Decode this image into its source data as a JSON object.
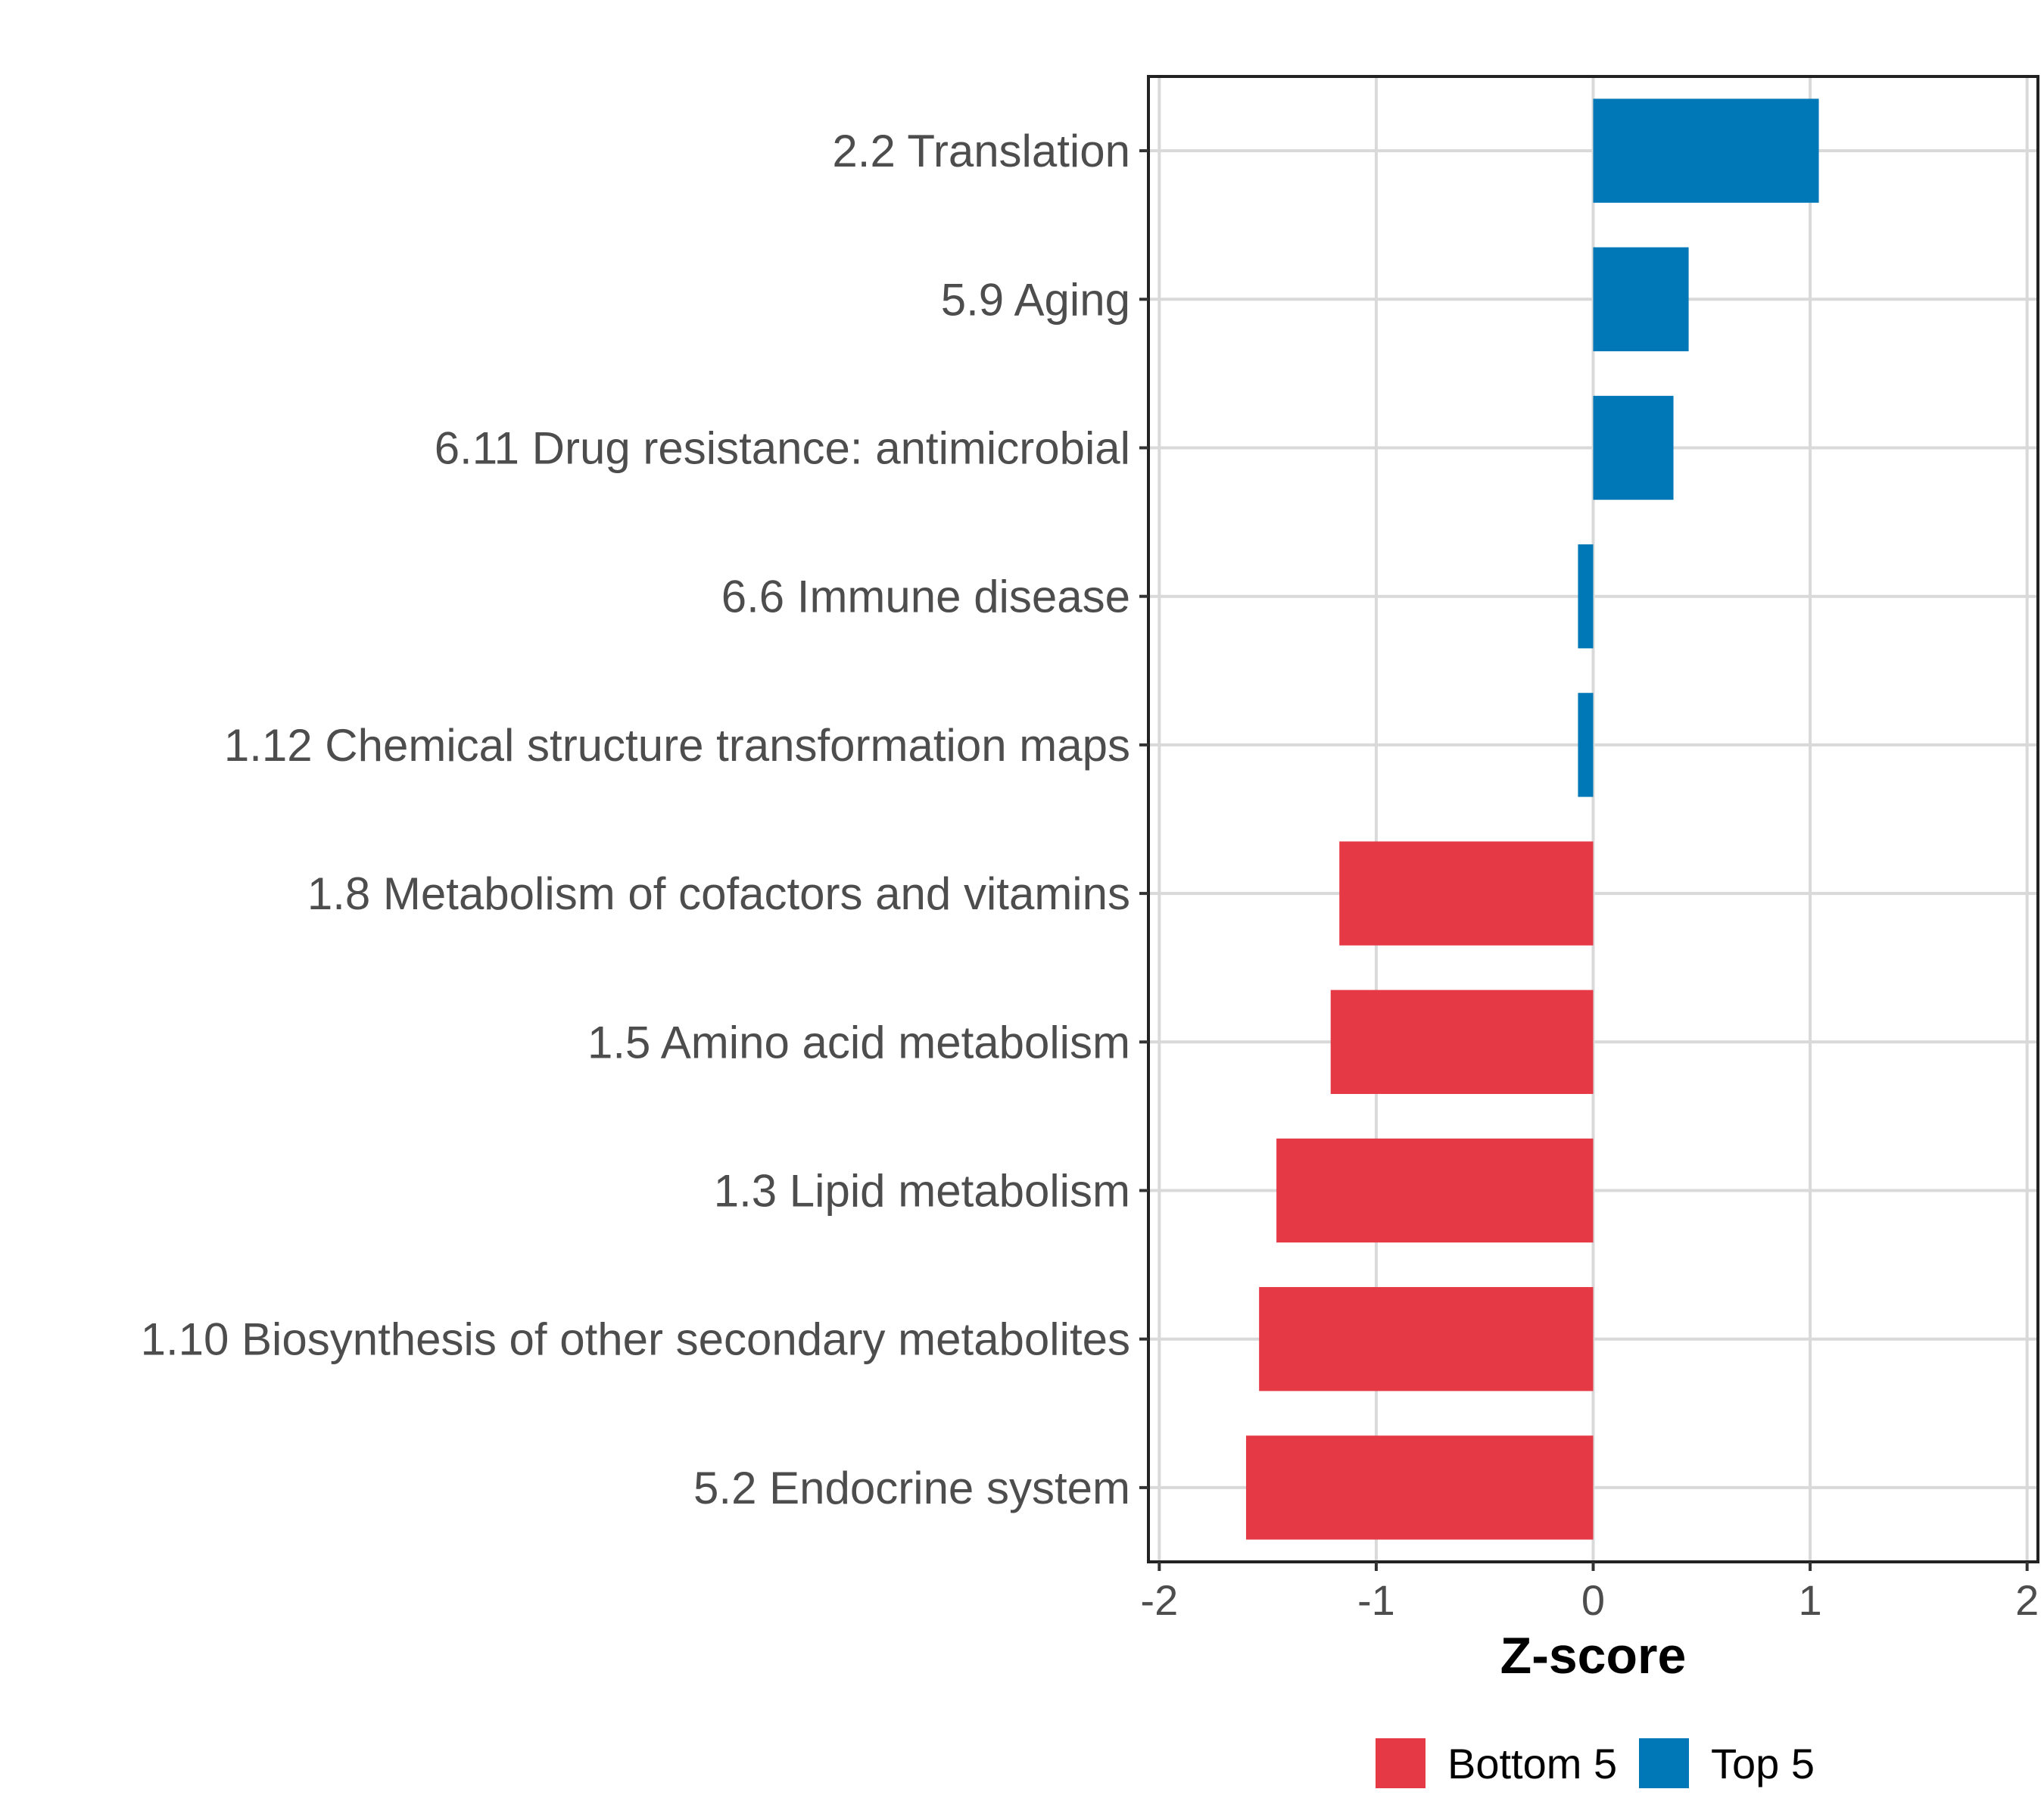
{
  "chart_data": {
    "type": "bar",
    "orientation": "horizontal",
    "title": "",
    "xlabel": "Z-score",
    "ylabel": "",
    "xlim": [
      -2.05,
      2.05
    ],
    "xticks": [
      -2,
      -1,
      0,
      1,
      2
    ],
    "grid": true,
    "legend_position": "bottom",
    "categories": [
      "2.2 Translation",
      "5.9 Aging",
      "6.11 Drug resistance: antimicrobial",
      "6.6 Immune disease",
      "1.12 Chemical structure transformation maps",
      "1.8 Metabolism of cofactors and vitamins",
      "1.5 Amino acid metabolism",
      "1.3 Lipid metabolism",
      "1.10 Biosynthesis of other secondary metabolites",
      "5.2 Endocrine system"
    ],
    "values": [
      1.04,
      0.44,
      0.37,
      -0.07,
      -0.07,
      -1.17,
      -1.21,
      -1.46,
      -1.54,
      -1.6
    ],
    "groups": [
      "Top 5",
      "Top 5",
      "Top 5",
      "Top 5",
      "Top 5",
      "Bottom 5",
      "Bottom 5",
      "Bottom 5",
      "Bottom 5",
      "Bottom 5"
    ],
    "legend": [
      {
        "name": "Bottom 5",
        "color": "#E63946"
      },
      {
        "name": "Top 5",
        "color": "#0077B6"
      }
    ]
  }
}
